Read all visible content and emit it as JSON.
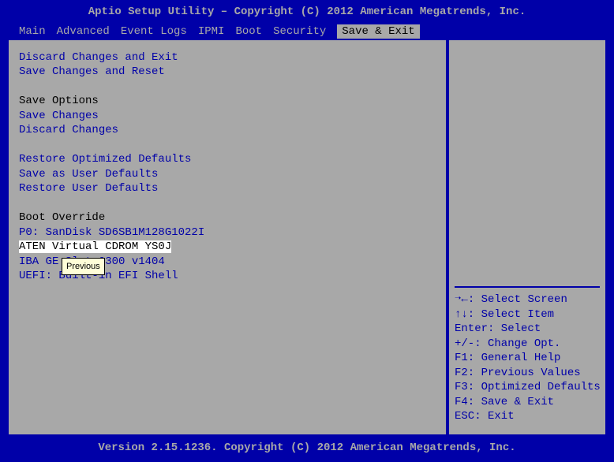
{
  "title": "Aptio Setup Utility – Copyright (C) 2012 American Megatrends, Inc.",
  "footer": "Version 2.15.1236. Copyright (C) 2012 American Megatrends, Inc.",
  "menu": {
    "items": [
      "Main",
      "Advanced",
      "Event Logs",
      "IPMI",
      "Boot",
      "Security",
      "Save & Exit"
    ],
    "active_index": 6
  },
  "left": {
    "lines": [
      {
        "text": "Discard Changes and Exit",
        "type": "link"
      },
      {
        "text": "Save Changes and Reset",
        "type": "link"
      },
      {
        "text": "",
        "type": "blank"
      },
      {
        "text": "Save Options",
        "type": "header"
      },
      {
        "text": "Save Changes",
        "type": "link"
      },
      {
        "text": "Discard Changes",
        "type": "link"
      },
      {
        "text": "",
        "type": "blank"
      },
      {
        "text": "Restore Optimized Defaults",
        "type": "link"
      },
      {
        "text": "Save as User Defaults",
        "type": "link"
      },
      {
        "text": "Restore User Defaults",
        "type": "link"
      },
      {
        "text": "",
        "type": "blank"
      },
      {
        "text": "Boot Override",
        "type": "header"
      },
      {
        "text": "P0: SanDisk SD6SB1M128G1022I",
        "type": "link"
      },
      {
        "text": "ATEN Virtual CDROM YS0J",
        "type": "selected"
      },
      {
        "text": "IBA GE Slot 0300 v1404",
        "type": "link"
      },
      {
        "text": "UEFI: Built-in EFI Shell",
        "type": "link"
      }
    ]
  },
  "right": {
    "lines": [
      "➝←: Select Screen",
      "↑↓: Select Item",
      "Enter: Select",
      "+/-: Change Opt.",
      "F1: General Help",
      "F2: Previous Values",
      "F3: Optimized Defaults",
      "F4: Save & Exit",
      "ESC: Exit"
    ]
  },
  "tooltip": "Previous",
  "colors": {
    "blue": "#0000a8",
    "gray": "#a8a8a8",
    "highlight_bg": "#ffffff",
    "highlight_fg": "#000000",
    "tooltip_bg": "#fffed8"
  }
}
